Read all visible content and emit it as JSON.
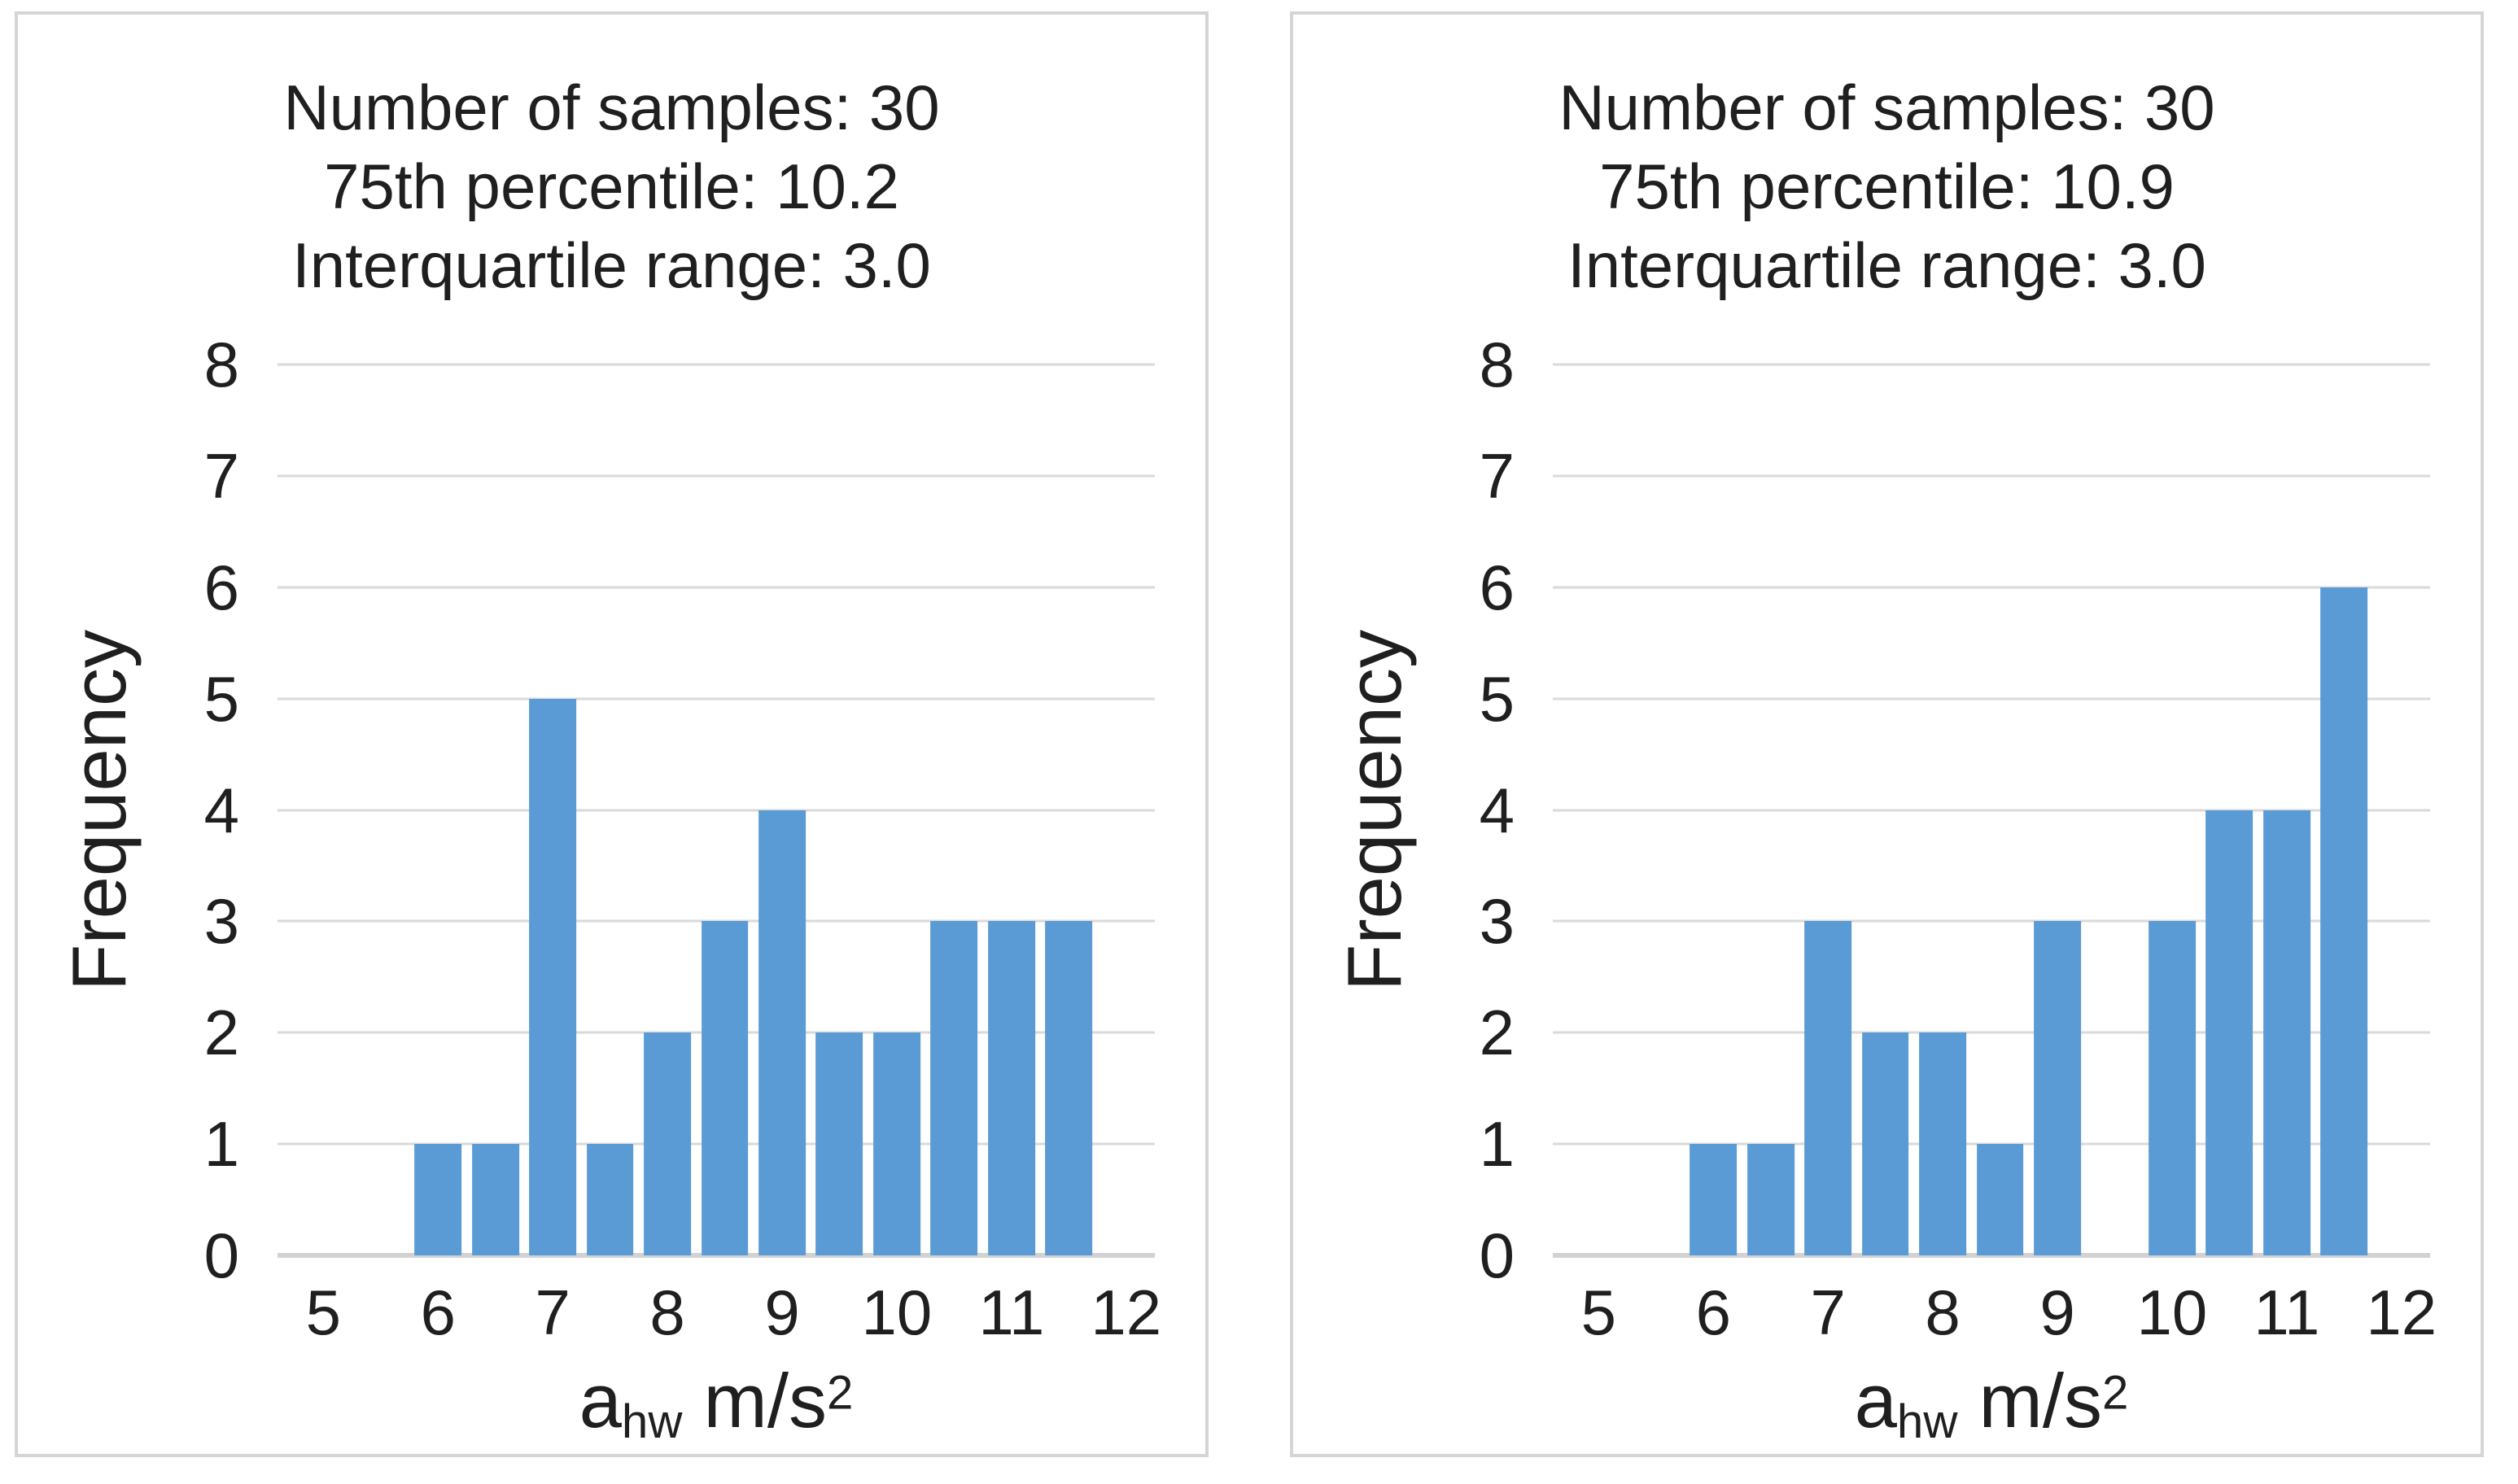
{
  "colors": {
    "bar": "#5B9BD5",
    "gridline": "#DADADA",
    "axis_line": "#D2D2D2",
    "text": "#1F1F1F",
    "panel_border": "#D5D5D5",
    "background": "#FFFFFF"
  },
  "chart_data": [
    {
      "type": "bar",
      "title_lines": [
        "Number of samples: 30",
        "75th percentile:  10.2",
        "Interquartile range: 3.0"
      ],
      "stats": {
        "number_of_samples": 30,
        "percentile_75": 10.2,
        "interquartile_range": 3.0
      },
      "ylabel": "Frequency",
      "xlabel": "ahw m/s²",
      "xlabel_parts": {
        "base": "a",
        "sub": "hw",
        "rest": " m/s",
        "sup": "2"
      },
      "x": [
        6.0,
        6.5,
        7.0,
        7.5,
        8.0,
        8.5,
        9.0,
        9.5,
        10.0,
        10.5,
        11.0,
        11.5
      ],
      "values": [
        1,
        1,
        5,
        1,
        2,
        3,
        4,
        2,
        2,
        3,
        3,
        3
      ],
      "bar_width": 0.41,
      "xlim": [
        4.6,
        12.25
      ],
      "ylim": [
        0,
        8
      ],
      "xticks": [
        5,
        6,
        7,
        8,
        9,
        10,
        11,
        12
      ],
      "yticks": [
        0,
        1,
        2,
        3,
        4,
        5,
        6,
        7,
        8
      ],
      "grid": true,
      "legend": null
    },
    {
      "type": "bar",
      "title_lines": [
        "Number of samples: 30",
        "75th percentile:  10.9",
        "Interquartile range: 3.0"
      ],
      "stats": {
        "number_of_samples": 30,
        "percentile_75": 10.9,
        "interquartile_range": 3.0
      },
      "ylabel": "Frequency",
      "xlabel": "ahw m/s²",
      "xlabel_parts": {
        "base": "a",
        "sub": "hw",
        "rest": " m/s",
        "sup": "2"
      },
      "x": [
        6.0,
        6.5,
        7.0,
        7.5,
        8.0,
        8.5,
        9.0,
        9.5,
        10.0,
        10.5,
        11.0,
        11.5
      ],
      "values": [
        1,
        1,
        3,
        2,
        2,
        1,
        3,
        0,
        3,
        4,
        4,
        6
      ],
      "bar_width": 0.41,
      "xlim": [
        4.6,
        12.25
      ],
      "ylim": [
        0,
        8
      ],
      "xticks": [
        5,
        6,
        7,
        8,
        9,
        10,
        11,
        12
      ],
      "yticks": [
        0,
        1,
        2,
        3,
        4,
        5,
        6,
        7,
        8
      ],
      "grid": true,
      "legend": null
    }
  ]
}
